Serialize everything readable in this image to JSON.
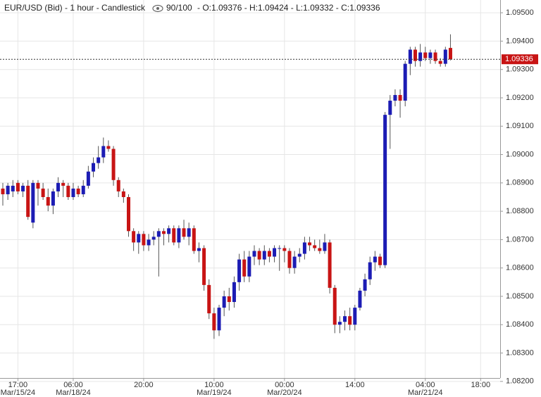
{
  "chart_data": {
    "type": "candlestick",
    "title": "EUR/USD (Bid) - 1 hour - Candlestick",
    "counter": "90/100",
    "ohlc_text": "- O:1.09376 - H:1.09424 - L:1.09332 - C:1.09336",
    "last_price_label": "1.09336",
    "up_color": "#1c1cb4",
    "down_color": "#c81414",
    "grid": true,
    "ylim": [
      1.08212,
      1.09545
    ],
    "yticks": [
      {
        "value": 1.082,
        "label": "1.08200"
      },
      {
        "value": 1.083,
        "label": "1.08300"
      },
      {
        "value": 1.084,
        "label": "1.08400"
      },
      {
        "value": 1.085,
        "label": "1.08500"
      },
      {
        "value": 1.086,
        "label": "1.08600"
      },
      {
        "value": 1.087,
        "label": "1.08700"
      },
      {
        "value": 1.088,
        "label": "1.08800"
      },
      {
        "value": 1.089,
        "label": "1.08900"
      },
      {
        "value": 1.09,
        "label": "1.09000"
      },
      {
        "value": 1.091,
        "label": "1.09100"
      },
      {
        "value": 1.092,
        "label": "1.09200"
      },
      {
        "value": 1.093,
        "label": "1.09300"
      },
      {
        "value": 1.094,
        "label": "1.09400"
      },
      {
        "value": 1.095,
        "label": "1.09500"
      }
    ],
    "categories": [
      null,
      null,
      null,
      "17:00",
      null,
      null,
      null,
      null,
      null,
      null,
      null,
      null,
      null,
      null,
      "06:00",
      null,
      null,
      null,
      null,
      null,
      null,
      null,
      null,
      null,
      null,
      null,
      null,
      null,
      "20:00",
      null,
      null,
      null,
      null,
      null,
      null,
      null,
      null,
      null,
      null,
      null,
      null,
      null,
      "10:00",
      null,
      null,
      null,
      null,
      null,
      null,
      null,
      null,
      null,
      null,
      null,
      null,
      null,
      "00:00",
      null,
      null,
      null,
      null,
      null,
      null,
      null,
      null,
      null,
      null,
      null,
      null,
      null,
      "14:00",
      null,
      null,
      null,
      null,
      null,
      null,
      null,
      null,
      null,
      null,
      null,
      null,
      null,
      "04:00",
      null,
      null,
      null,
      null,
      null,
      null,
      null,
      null,
      null,
      null,
      "18:00"
    ],
    "date_labels": [
      null,
      null,
      null,
      "Mar/15/24",
      null,
      null,
      null,
      null,
      null,
      null,
      null,
      null,
      null,
      null,
      "Mar/18/24",
      null,
      null,
      null,
      null,
      null,
      null,
      null,
      null,
      null,
      null,
      null,
      null,
      null,
      null,
      null,
      null,
      null,
      null,
      null,
      null,
      null,
      null,
      null,
      null,
      null,
      null,
      null,
      "Mar/19/24",
      null,
      null,
      null,
      null,
      null,
      null,
      null,
      null,
      null,
      null,
      null,
      null,
      null,
      "Mar/20/24",
      null,
      null,
      null,
      null,
      null,
      null,
      null,
      null,
      null,
      null,
      null,
      null,
      null,
      null,
      null,
      null,
      null,
      null,
      null,
      null,
      null,
      null,
      null,
      null,
      null,
      null,
      null,
      "Mar/21/24",
      null,
      null,
      null,
      null,
      null,
      null,
      null,
      null,
      null,
      null,
      null
    ],
    "open": [
      1.0888,
      1.0886,
      1.0887,
      1.089,
      1.0887,
      1.0889,
      1.0876,
      1.089,
      1.0888,
      1.0885,
      1.0882,
      1.0887,
      1.089,
      1.0889,
      1.0885,
      1.0888,
      1.0886,
      1.0889,
      1.0894,
      1.0897,
      1.0899,
      1.0903,
      1.0902,
      1.0891,
      1.0887,
      1.0885,
      1.0873,
      1.0869,
      1.0872,
      1.0868,
      1.087,
      1.0871,
      1.0873,
      1.0872,
      1.0874,
      1.0869,
      1.0874,
      1.0871,
      1.0874,
      1.0866,
      1.0867,
      1.0854,
      1.0844,
      1.0838,
      1.0846,
      1.085,
      1.0848,
      1.0855,
      1.0863,
      1.0857,
      1.0864,
      1.0866,
      1.0863,
      1.0866,
      1.0864,
      1.0867,
      1.0867,
      1.0866,
      1.086,
      1.0864,
      1.0865,
      1.0869,
      1.0868,
      1.0867,
      1.0866,
      1.0869,
      1.0853,
      1.084,
      1.0841,
      1.0843,
      1.084,
      1.0846,
      1.0852,
      1.0856,
      1.0862,
      1.0864,
      1.0861,
      1.0914,
      1.0919,
      1.0921,
      1.0919,
      1.0932,
      1.0937,
      1.0933,
      1.0936,
      1.0934,
      1.0936,
      1.0933,
      1.0932,
      1.09376,
      null,
      null,
      null,
      null,
      null,
      null
    ],
    "high": [
      1.089,
      1.089,
      1.0891,
      1.0891,
      1.089,
      1.0891,
      1.0891,
      1.0891,
      1.089,
      1.0888,
      1.0888,
      1.0892,
      1.0891,
      1.089,
      1.089,
      1.0889,
      1.0891,
      1.0896,
      1.0899,
      1.0903,
      1.0906,
      1.0905,
      1.0903,
      1.0892,
      1.0888,
      1.0886,
      1.0874,
      1.0873,
      1.0873,
      1.0872,
      1.0873,
      1.0874,
      1.0874,
      1.0875,
      1.0875,
      1.0875,
      1.0877,
      1.0876,
      1.0875,
      1.0869,
      1.0868,
      1.0856,
      1.0846,
      1.0847,
      1.0852,
      1.0853,
      1.0857,
      1.0865,
      1.0866,
      1.0866,
      1.0868,
      1.0867,
      1.0868,
      1.0867,
      1.0868,
      1.0868,
      1.0868,
      1.0867,
      1.0866,
      1.0867,
      1.0871,
      1.0871,
      1.087,
      1.087,
      1.0872,
      1.087,
      1.0854,
      1.0843,
      1.0845,
      1.0846,
      1.0847,
      1.0853,
      1.0858,
      1.0864,
      1.0866,
      1.0865,
      1.0915,
      1.0921,
      1.0923,
      1.0923,
      1.0933,
      1.0938,
      1.0938,
      1.0939,
      1.0938,
      1.0937,
      1.0937,
      1.0934,
      1.0938,
      1.09424,
      null,
      null,
      null,
      null,
      null,
      null
    ],
    "low": [
      1.0882,
      1.0884,
      1.0885,
      1.0886,
      1.0885,
      1.0877,
      1.0874,
      1.0882,
      1.0884,
      1.088,
      1.0879,
      1.0885,
      1.0885,
      1.0884,
      1.0884,
      1.0885,
      1.0885,
      1.0888,
      1.0892,
      1.0895,
      1.0897,
      1.0901,
      1.0889,
      1.0885,
      1.0883,
      1.0871,
      1.0866,
      1.0865,
      1.0866,
      1.0866,
      1.0868,
      1.0857,
      1.0868,
      1.0869,
      1.0868,
      1.0867,
      1.087,
      1.0868,
      1.0865,
      1.0862,
      1.0852,
      1.0842,
      1.0835,
      1.0836,
      1.0843,
      1.0845,
      1.0846,
      1.0852,
      1.0855,
      1.0855,
      1.0861,
      1.0861,
      1.0861,
      1.0862,
      1.0862,
      1.0859,
      1.0862,
      1.0858,
      1.0858,
      1.0862,
      1.0863,
      1.0866,
      1.0866,
      1.0865,
      1.0865,
      1.0851,
      1.0837,
      1.0837,
      1.0838,
      1.0838,
      1.0838,
      1.0845,
      1.085,
      1.0854,
      1.0859,
      1.086,
      1.086,
      1.0902,
      1.0917,
      1.0913,
      1.0917,
      1.0928,
      1.0931,
      1.0931,
      1.0933,
      1.0932,
      1.0932,
      1.0931,
      1.0931,
      1.09332,
      null,
      null,
      null,
      null,
      null,
      null
    ],
    "close": [
      1.0886,
      1.0889,
      1.0889,
      1.0887,
      1.0889,
      1.0878,
      1.089,
      1.0888,
      1.0885,
      1.0882,
      1.0887,
      1.089,
      1.0889,
      1.0885,
      1.0888,
      1.0886,
      1.0889,
      1.0894,
      1.0897,
      1.0899,
      1.0903,
      1.0902,
      1.0891,
      1.0887,
      1.0885,
      1.0873,
      1.0869,
      1.0872,
      1.0868,
      1.087,
      1.0871,
      1.0873,
      1.0872,
      1.0874,
      1.0869,
      1.0874,
      1.0871,
      1.0874,
      1.0866,
      1.0867,
      1.0854,
      1.0844,
      1.0838,
      1.0846,
      1.085,
      1.0848,
      1.0855,
      1.0863,
      1.0857,
      1.0864,
      1.0866,
      1.0863,
      1.0866,
      1.0864,
      1.0867,
      1.0867,
      1.0866,
      1.086,
      1.0864,
      1.0865,
      1.0869,
      1.0868,
      1.0867,
      1.0866,
      1.0869,
      1.0853,
      1.084,
      1.0841,
      1.0843,
      1.084,
      1.0846,
      1.0852,
      1.0856,
      1.0862,
      1.0864,
      1.0861,
      1.0914,
      1.0919,
      1.0921,
      1.0919,
      1.0932,
      1.0937,
      1.0933,
      1.0936,
      1.0934,
      1.0936,
      1.0933,
      1.0932,
      1.0937,
      1.09336,
      null,
      null,
      null,
      null,
      null,
      null
    ]
  }
}
